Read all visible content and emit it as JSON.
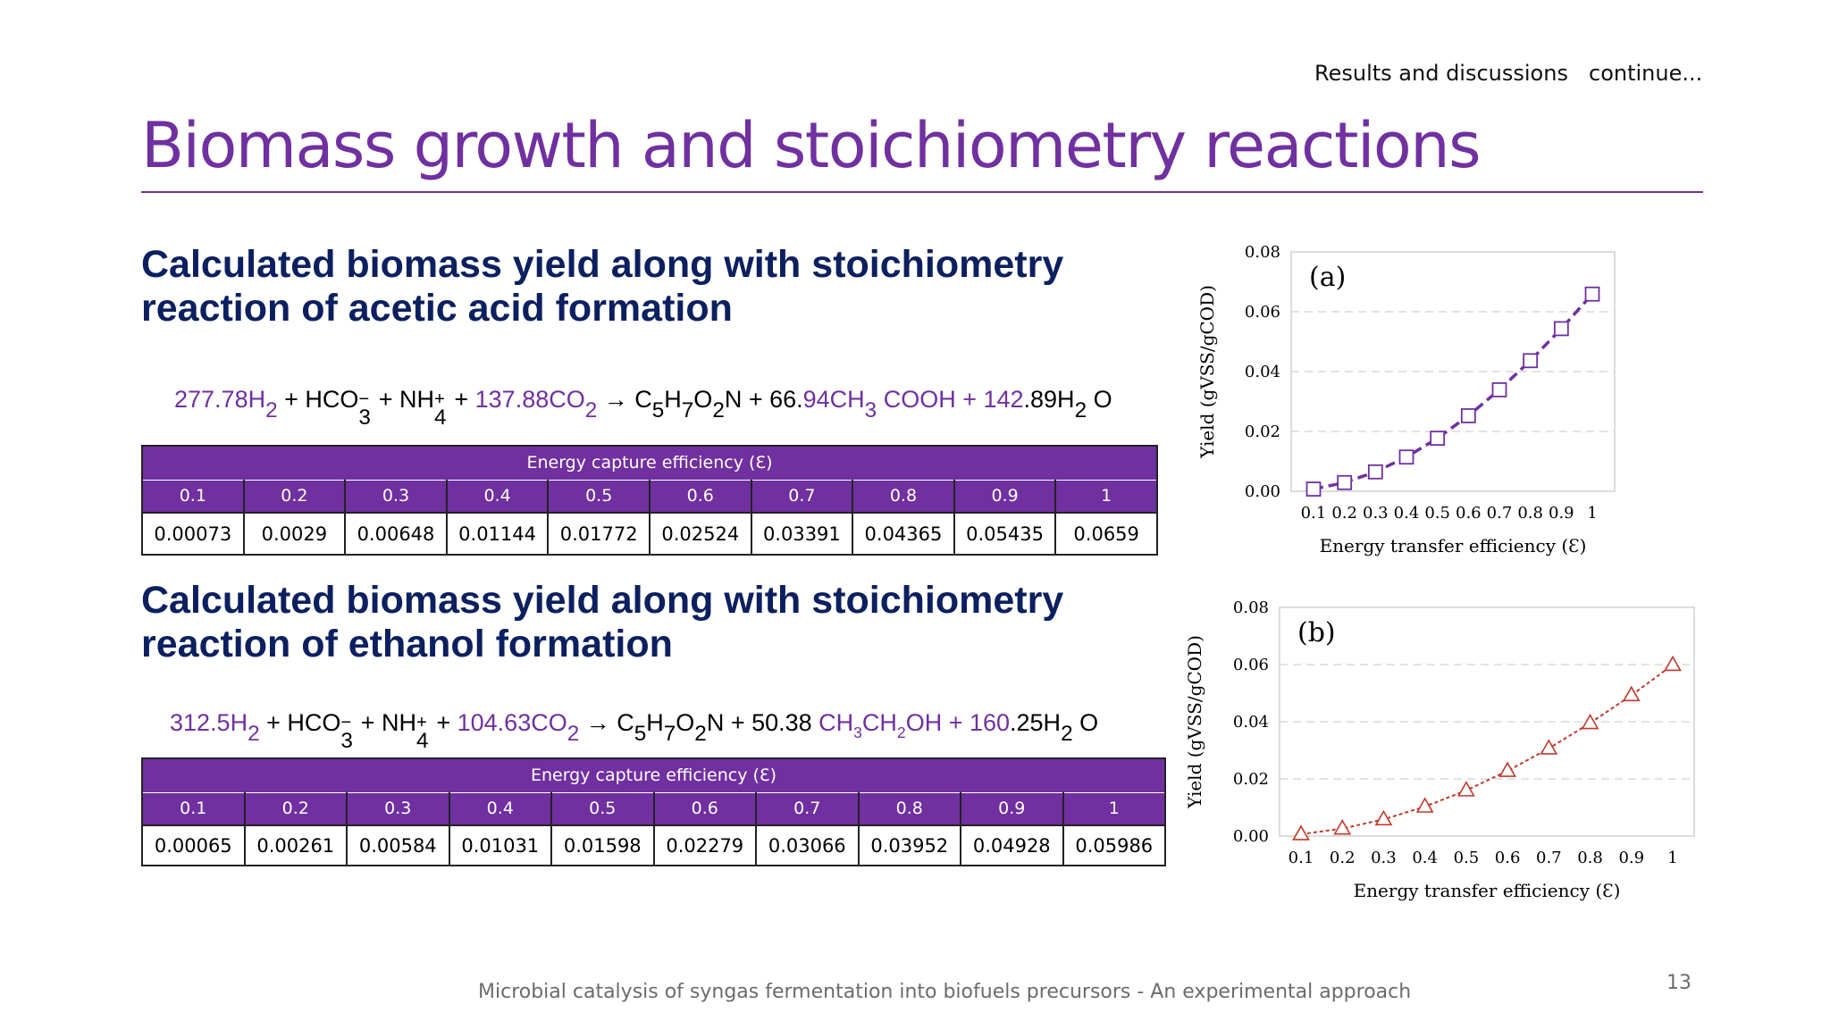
{
  "header": {
    "section": "Results and discussions",
    "continue": "continue..."
  },
  "title": "Biomass growth and stoichiometry reactions",
  "acetic": {
    "subtitle": "Calculated biomass yield along with stoichiometry reaction of acetic acid formation",
    "equation": {
      "h2_coef": "277.78H",
      "h2_sub": "2",
      "hco3": " + HCO",
      "hco3_sub": "3",
      "hco3_sup": "−",
      "nh4": "  + NH",
      "nh4_sub": "4",
      "nh4_sup": "+",
      "plus_co2": "  + ",
      "co2": "137.88CO",
      "co2_sub": "2",
      "arrow": " → C",
      "c_sub": "5",
      "h": "H",
      "h_sub": "7",
      "o": "O",
      "o_sub": "2",
      "n_plus": "N + 66.",
      "prod_a": "94CH",
      "prod_a_sub": "3",
      "prod_b": " COOH + 142",
      "water": ".89H",
      "water_sub": "2",
      "water_o": " O"
    },
    "table": {
      "header": "Energy capture efficiency (Ɛ)",
      "efficiencies": [
        "0.1",
        "0.2",
        "0.3",
        "0.4",
        "0.5",
        "0.6",
        "0.7",
        "0.8",
        "0.9",
        "1"
      ],
      "yields": [
        "0.00073",
        "0.0029",
        "0.00648",
        "0.01144",
        "0.01772",
        "0.02524",
        "0.03391",
        "0.04365",
        "0.05435",
        "0.0659"
      ]
    }
  },
  "ethanol": {
    "subtitle": "Calculated biomass yield along with stoichiometry reaction of ethanol formation",
    "equation": {
      "h2_coef": "312.5H",
      "h2_sub": "2",
      "hco3": " + HCO",
      "hco3_sub": "3",
      "hco3_sup": "−",
      "nh4": "  + NH",
      "nh4_sub": "4",
      "nh4_sup": "+",
      "plus_co2": " + ",
      "co2": "104.63CO",
      "co2_sub": "2",
      "arrow": " → C",
      "c_sub": "5",
      "h": "H",
      "h_sub": "7",
      "o": "O",
      "o_sub": "2",
      "n_plus": "N + 50.38 ",
      "prod_a": "CH",
      "prod_a_sub": "3",
      "prod_b": "CH",
      "prod_b_sub": "2",
      "prod_c": "OH + 160",
      "water": ".25H",
      "water_sub": "2",
      "water_o": " O"
    },
    "table": {
      "header": "Energy capture efficiency (Ɛ)",
      "efficiencies": [
        "0.1",
        "0.2",
        "0.3",
        "0.4",
        "0.5",
        "0.6",
        "0.7",
        "0.8",
        "0.9",
        "1"
      ],
      "yields": [
        "0.00065",
        "0.00261",
        "0.00584",
        "0.01031",
        "0.01598",
        "0.02279",
        "0.03066",
        "0.03952",
        "0.04928",
        "0.05986"
      ]
    }
  },
  "chart_data": [
    {
      "type": "scatter",
      "panel_label": "(a)",
      "x": [
        0.1,
        0.2,
        0.3,
        0.4,
        0.5,
        0.6,
        0.7,
        0.8,
        0.9,
        1
      ],
      "y": [
        0.00073,
        0.0029,
        0.00648,
        0.01144,
        0.01772,
        0.02524,
        0.03391,
        0.04365,
        0.05435,
        0.0659
      ],
      "x_ticks": [
        "0.1",
        "0.2",
        "0.3",
        "0.4",
        "0.5",
        "0.6",
        "0.7",
        "0.8",
        "0.9",
        "1"
      ],
      "y_ticks": [
        "0.00",
        "0.02",
        "0.04",
        "0.06",
        "0.08"
      ],
      "ylim": [
        0,
        0.08
      ],
      "xlabel": "Energy transfer efficiency (Ɛ)",
      "ylabel": "Yield (gVSS/gCOD)",
      "marker": "square",
      "line_style": "dashed",
      "color": "#7030a0",
      "grid": "horizontal dashed"
    },
    {
      "type": "scatter",
      "panel_label": "(b)",
      "x": [
        0.1,
        0.2,
        0.3,
        0.4,
        0.5,
        0.6,
        0.7,
        0.8,
        0.9,
        1
      ],
      "y": [
        0.00065,
        0.00261,
        0.00584,
        0.01031,
        0.01598,
        0.02279,
        0.03066,
        0.03952,
        0.04928,
        0.05986
      ],
      "x_ticks": [
        "0.1",
        "0.2",
        "0.3",
        "0.4",
        "0.5",
        "0.6",
        "0.7",
        "0.8",
        "0.9",
        "1"
      ],
      "y_ticks": [
        "0.00",
        "0.02",
        "0.04",
        "0.06",
        "0.08"
      ],
      "ylim": [
        0,
        0.08
      ],
      "xlabel": "Energy transfer efficiency (Ɛ)",
      "ylabel": "Yield (gVSS/gCOD)",
      "marker": "triangle",
      "line_style": "dotted",
      "color": "#c0392b",
      "grid": "horizontal dashed"
    }
  ],
  "footer": {
    "text": "Microbial catalysis of syngas fermentation into biofuels precursors - An experimental approach",
    "page": "13"
  },
  "colors": {
    "accent": "#7030a0",
    "heading": "#0c2060",
    "chart_b": "#c0392b"
  }
}
